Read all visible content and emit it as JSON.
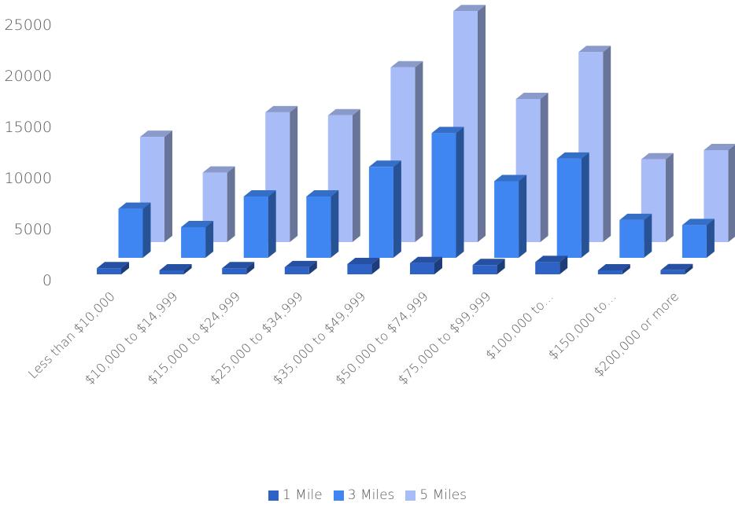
{
  "chart_data": {
    "type": "bar",
    "subtype": "3d-clustered-column",
    "categories": [
      "Less than $10,000",
      "$10,000 to $14,999",
      "$15,000 to $24,999",
      "$25,000 to $34,999",
      "$35,000 to $49,999",
      "$50,000 to $74,999",
      "$75,000 to $99,999",
      "$100,000 to…",
      "$150,000 to…",
      "$200,000 or more"
    ],
    "series": [
      {
        "name": "1 Mile",
        "color": "#2E62C4",
        "values": [
          600,
          200,
          600,
          700,
          1000,
          1100,
          900,
          1200,
          300,
          400
        ]
      },
      {
        "name": "3 Miles",
        "color": "#3F86F2",
        "values": [
          4800,
          3000,
          6000,
          6000,
          8900,
          12200,
          7500,
          9700,
          3700,
          3200
        ]
      },
      {
        "name": "5 Miles",
        "color": "#A8BCF7",
        "values": [
          10300,
          6800,
          12700,
          12400,
          17100,
          22600,
          14000,
          18600,
          8100,
          9000
        ]
      }
    ],
    "y_ticks": [
      "0",
      "5000",
      "10000",
      "15000",
      "20000",
      "25000"
    ],
    "ylim": [
      0,
      25000
    ],
    "legend_position": "bottom",
    "grid": false
  }
}
